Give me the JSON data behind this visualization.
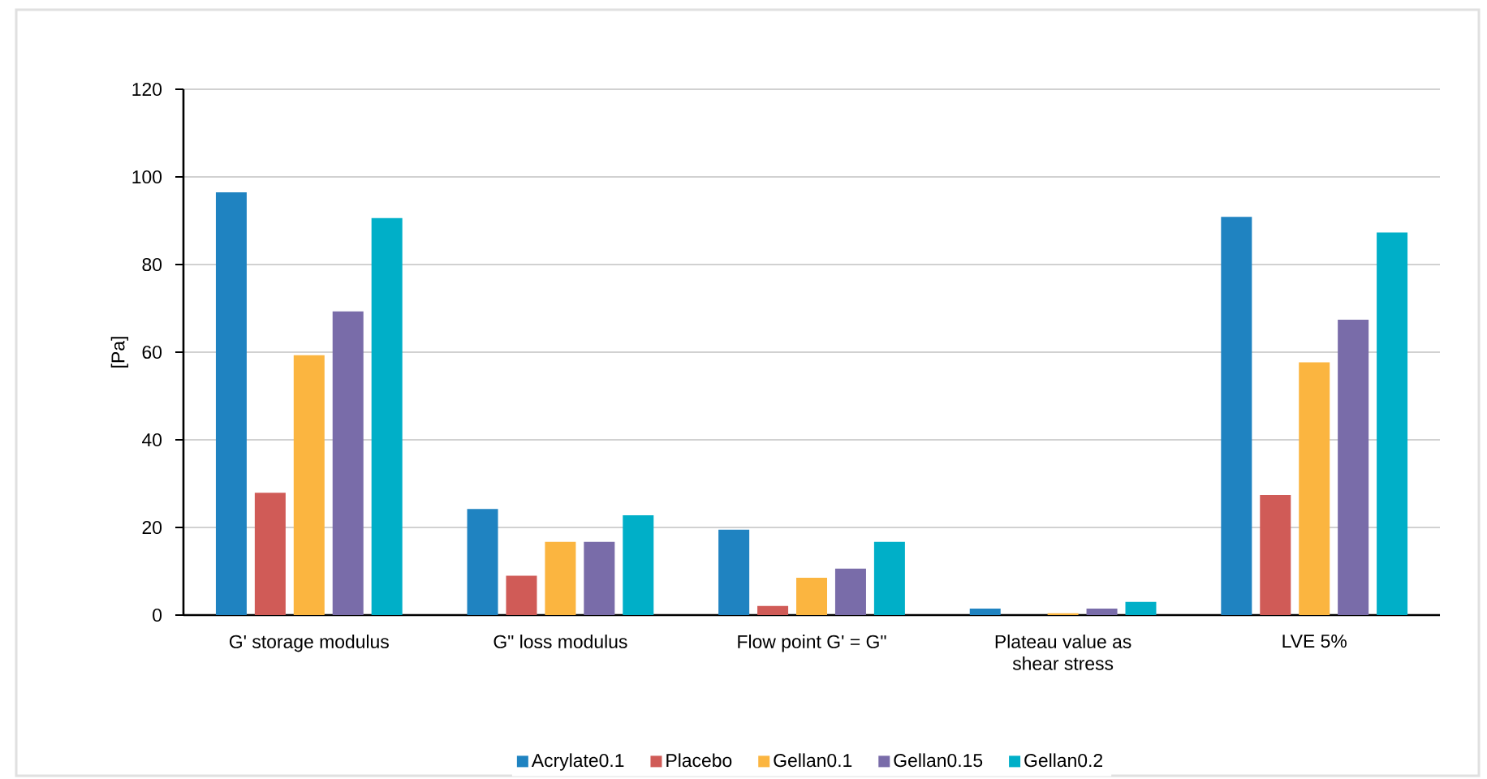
{
  "chart_data": {
    "type": "bar",
    "ylabel": "[Pa]",
    "categories": [
      "G' storage modulus",
      "G\" loss modulus",
      "Flow point G' = G\"",
      "Plateau value as shear stress",
      "LVE 5%"
    ],
    "series": [
      {
        "name": "Acrylate0.1",
        "color": "#1f83c1",
        "values": [
          96.5,
          24.2,
          19.5,
          1.5,
          90.9
        ]
      },
      {
        "name": "Placebo",
        "color": "#d05b57",
        "values": [
          27.9,
          9.0,
          2.1,
          0,
          27.4
        ]
      },
      {
        "name": "Gellan0.1",
        "color": "#fbb540",
        "values": [
          59.3,
          16.7,
          8.5,
          0.4,
          57.7
        ]
      },
      {
        "name": "Gellan0.15",
        "color": "#796ca9",
        "values": [
          69.3,
          16.7,
          10.6,
          1.5,
          67.4
        ]
      },
      {
        "name": "Gellan0.2",
        "color": "#00afc8",
        "values": [
          90.6,
          22.8,
          16.7,
          3.0,
          87.3
        ]
      }
    ],
    "ylim": [
      0,
      120
    ],
    "yticks": [
      0,
      20,
      40,
      60,
      80,
      100,
      120
    ],
    "grid": "y",
    "legend": "bottom"
  }
}
